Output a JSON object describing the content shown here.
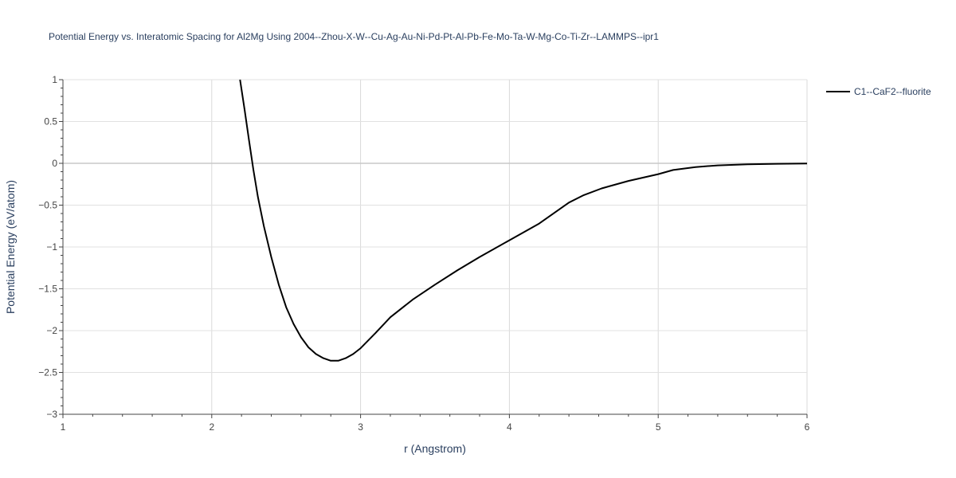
{
  "chart_data": {
    "type": "line",
    "title": "Potential Energy vs. Interatomic Spacing for Al2Mg Using 2004--Zhou-X-W--Cu-Ag-Au-Ni-Pd-Pt-Al-Pb-Fe-Mo-Ta-W-Mg-Co-Ti-Zr--LAMMPS--ipr1",
    "xlabel": "r (Angstrom)",
    "ylabel": "Potential Energy (eV/atom)",
    "xlim": [
      1,
      6
    ],
    "ylim": [
      -3,
      1
    ],
    "xticks": [
      1,
      2,
      3,
      4,
      5,
      6
    ],
    "yticks": [
      1,
      0.5,
      0,
      -0.5,
      -1,
      -1.5,
      -2,
      -2.5,
      -3
    ],
    "ytick_labels": [
      "1",
      "0.5",
      "0",
      "−0.5",
      "−1",
      "−1.5",
      "−2",
      "−2.5",
      "−3"
    ],
    "grid": true,
    "legend_position": "top-right",
    "series": [
      {
        "name": "C1--CaF2--fluorite",
        "color": "#000000",
        "x": [
          2.19,
          2.22,
          2.25,
          2.28,
          2.31,
          2.35,
          2.4,
          2.45,
          2.5,
          2.55,
          2.6,
          2.65,
          2.7,
          2.75,
          2.8,
          2.85,
          2.9,
          2.95,
          3.0,
          3.1,
          3.2,
          3.35,
          3.5,
          3.65,
          3.8,
          4.0,
          4.2,
          4.4,
          4.5,
          4.62,
          4.8,
          5.0,
          5.1,
          5.25,
          5.4,
          5.6,
          5.8,
          6.0
        ],
        "y": [
          1.0,
          0.65,
          0.28,
          -0.08,
          -0.4,
          -0.75,
          -1.12,
          -1.45,
          -1.72,
          -1.92,
          -2.08,
          -2.2,
          -2.28,
          -2.33,
          -2.36,
          -2.36,
          -2.33,
          -2.28,
          -2.21,
          -2.03,
          -1.84,
          -1.63,
          -1.45,
          -1.28,
          -1.12,
          -0.92,
          -0.72,
          -0.47,
          -0.38,
          -0.3,
          -0.21,
          -0.13,
          -0.08,
          -0.045,
          -0.025,
          -0.012,
          -0.006,
          -0.002
        ]
      }
    ]
  }
}
